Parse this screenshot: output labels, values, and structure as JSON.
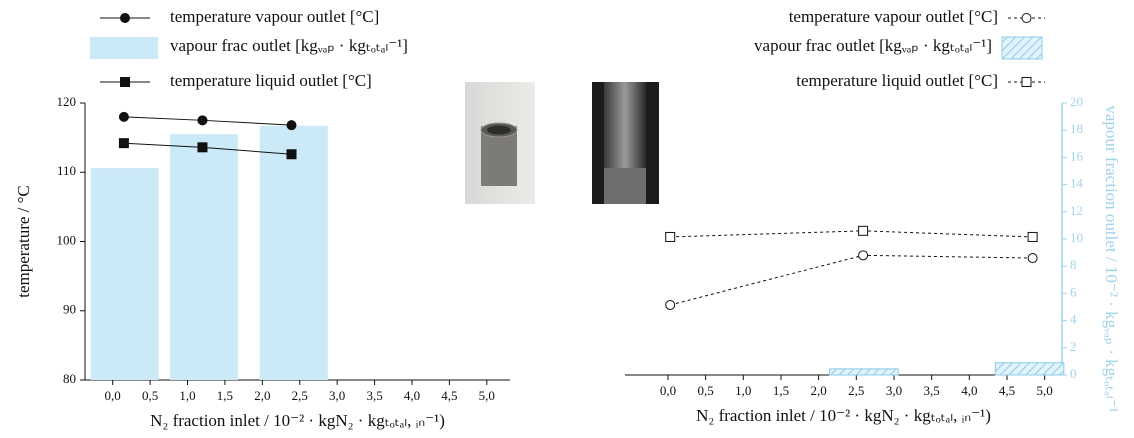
{
  "chart_data": [
    {
      "type": "combo",
      "ylabel": "temperature / °C",
      "xlabel": "N₂ fraction inlet / 10⁻² · kgN₂ · kgₜₒₜₐₗ, ᵢₙ⁻¹)",
      "xlim": [
        -0.37,
        5.31
      ],
      "ylim": [
        80,
        120
      ],
      "yticks": [
        80,
        90,
        100,
        110,
        120
      ],
      "xticks": [
        {
          "value": 0,
          "label": "0,0"
        },
        {
          "value": 0.5,
          "label": "0,5"
        },
        {
          "value": 1,
          "label": "1,0"
        },
        {
          "value": 1.5,
          "label": "1,5"
        },
        {
          "value": 2,
          "label": "2,0"
        },
        {
          "value": 2.5,
          "label": "2,5"
        },
        {
          "value": 3,
          "label": "3,0"
        },
        {
          "value": 3.5,
          "label": "3,5"
        },
        {
          "value": 4,
          "label": "4,0"
        },
        {
          "value": 4.5,
          "label": "4,5"
        },
        {
          "value": 5,
          "label": "5,0"
        }
      ],
      "legend": "top-left",
      "series": [
        {
          "name": "temperature vapour outlet [°C]",
          "type": "line",
          "marker": "circle",
          "color": "#111111",
          "marker_fill": "#111111",
          "line_style": "solid",
          "x": [
            0.15,
            1.2,
            2.39
          ],
          "values": [
            118.0,
            117.5,
            116.8
          ]
        },
        {
          "name": "vapour frac outlet [kgᵥₐₚ · kgₜₒₜₐₗ⁻¹]",
          "type": "bar",
          "color": "#cce9f8",
          "hatch": false,
          "x": [
            0.16,
            1.22,
            2.42
          ],
          "values": [
            110.6,
            115.5,
            116.7
          ]
        },
        {
          "name": "temperature liquid outlet [°C]",
          "type": "line",
          "marker": "square",
          "color": "#111111",
          "marker_fill": "#111111",
          "line_style": "solid",
          "x": [
            0.15,
            1.2,
            2.39
          ],
          "values": [
            114.2,
            113.6,
            112.6
          ]
        }
      ]
    },
    {
      "type": "combo",
      "y2label": "vapour fraction outlet / 10⁻² · kgᵥₐₚ · kgₜₒₜₐₗ⁻¹",
      "xlabel": "N₂ fraction inlet / 10⁻² · kgN₂ · kgₜₒₜₐₗ, ᵢₙ⁻¹)",
      "xlim": [
        -0.57,
        5.23
      ],
      "y2lim": [
        0,
        20
      ],
      "y2ticks": [
        0,
        2,
        4,
        6,
        8,
        10,
        12,
        14,
        16,
        18,
        20
      ],
      "y2color": "#9fd3ea",
      "xticks": [
        {
          "value": 0,
          "label": "0,0"
        },
        {
          "value": 0.5,
          "label": "0,5"
        },
        {
          "value": 1,
          "label": "1,0"
        },
        {
          "value": 1.5,
          "label": "1,5"
        },
        {
          "value": 2,
          "label": "2,0"
        },
        {
          "value": 2.5,
          "label": "2,5"
        },
        {
          "value": 3,
          "label": "3,0"
        },
        {
          "value": 3.5,
          "label": "3,5"
        },
        {
          "value": 4,
          "label": "4,0"
        },
        {
          "value": 4.5,
          "label": "4,5"
        },
        {
          "value": 5,
          "label": "5,0"
        }
      ],
      "legend": "top-right",
      "series": [
        {
          "name": "temperature vapour outlet [°C]",
          "type": "line",
          "marker": "circle",
          "color": "#111111",
          "marker_fill": "#ffffff",
          "line_style": "dashed",
          "axis": "y2",
          "x": [
            0.03,
            2.59,
            4.84
          ],
          "values": [
            5.15,
            8.8,
            8.6
          ]
        },
        {
          "name": "vapour frac outlet [kgᵥₐₚ · kgₜₒₜₐₗ⁻¹]",
          "type": "bar",
          "color": "#8fcbe8",
          "hatch": true,
          "axis": "y2",
          "x": [
            2.6,
            4.8
          ],
          "values": [
            0.45,
            0.9
          ]
        },
        {
          "name": "temperature liquid outlet [°C]",
          "type": "line",
          "marker": "square",
          "color": "#111111",
          "marker_fill": "#ffffff",
          "line_style": "dashed",
          "axis": "y2",
          "x": [
            0.03,
            2.59,
            4.84
          ],
          "values": [
            10.15,
            10.6,
            10.15
          ]
        }
      ]
    }
  ]
}
